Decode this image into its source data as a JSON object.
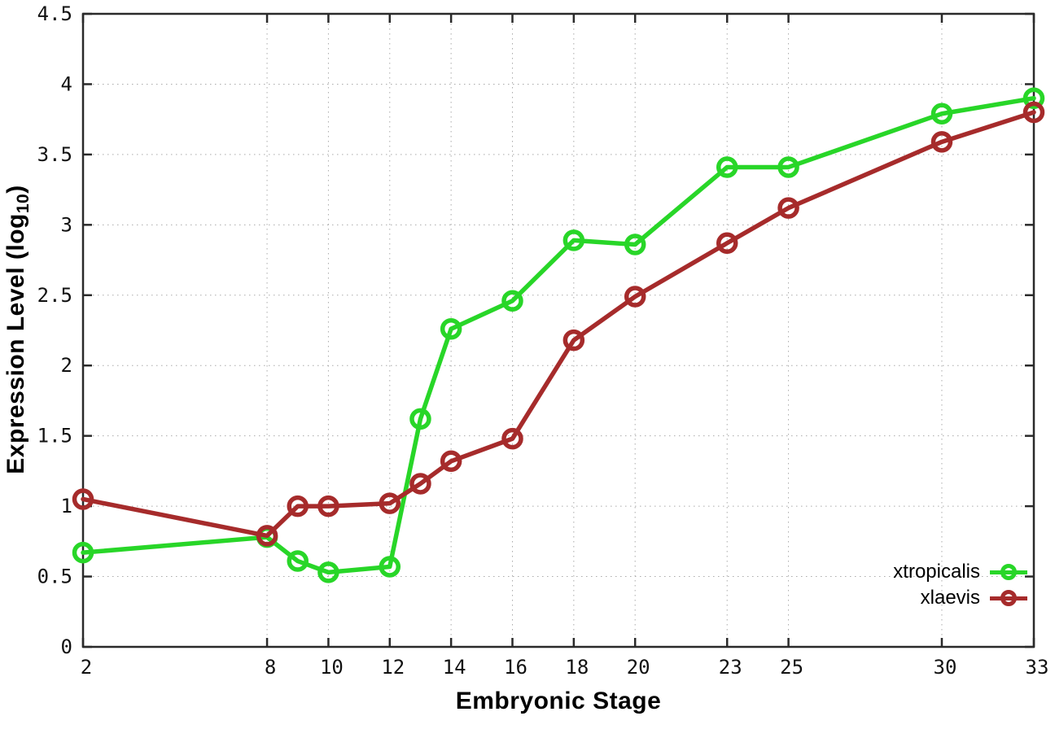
{
  "chart_data": {
    "type": "line",
    "title": "",
    "xlabel": "Embryonic Stage",
    "ylabel_prefix": "Expression Level (log",
    "ylabel_sub": "10",
    "ylabel_suffix": ")",
    "xlim": [
      2,
      33
    ],
    "ylim": [
      0,
      4.5
    ],
    "x_ticks": [
      2,
      8,
      10,
      12,
      14,
      16,
      18,
      20,
      23,
      25,
      30,
      33
    ],
    "y_ticks": [
      0,
      0.5,
      1,
      1.5,
      2,
      2.5,
      3,
      3.5,
      4,
      4.5
    ],
    "grid": true,
    "grid_color": "#aaaaaa",
    "frame_color": "#2a2a2a",
    "legend_position": "bottom-right",
    "x": [
      2,
      8,
      9,
      10,
      12,
      13,
      14,
      16,
      18,
      20,
      23,
      25,
      30,
      33
    ],
    "series": [
      {
        "name": "xtropicalis",
        "color": "#28d628",
        "values": [
          0.67,
          0.78,
          0.61,
          0.53,
          0.57,
          1.62,
          2.26,
          2.46,
          2.89,
          2.86,
          3.41,
          3.41,
          3.79,
          3.9
        ]
      },
      {
        "name": "xlaevis",
        "color": "#a62b2b",
        "values": [
          1.05,
          0.79,
          1.0,
          1.0,
          1.02,
          1.16,
          1.32,
          1.48,
          2.18,
          2.49,
          2.87,
          3.12,
          3.59,
          3.8
        ]
      }
    ]
  }
}
